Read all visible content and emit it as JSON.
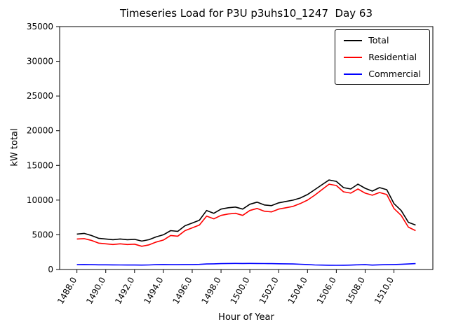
{
  "chart_data": {
    "type": "line",
    "title": "Timeseries Load for P3U p3uhs10_1247  Day 63",
    "xlabel": "Hour of Year",
    "ylabel": "kW total",
    "xlim": [
      1486.8,
      1512.7
    ],
    "ylim": [
      0,
      35000
    ],
    "grid": false,
    "legend_position": "upper right",
    "x_ticks": [
      {
        "value": 1488,
        "label": "1488.0"
      },
      {
        "value": 1490,
        "label": "1490.0"
      },
      {
        "value": 1492,
        "label": "1492.0"
      },
      {
        "value": 1494,
        "label": "1494.0"
      },
      {
        "value": 1496,
        "label": "1496.0"
      },
      {
        "value": 1498,
        "label": "1498.0"
      },
      {
        "value": 1500,
        "label": "1500.0"
      },
      {
        "value": 1502,
        "label": "1502.0"
      },
      {
        "value": 1504,
        "label": "1504.0"
      },
      {
        "value": 1506,
        "label": "1506.0"
      },
      {
        "value": 1508,
        "label": "1508.0"
      },
      {
        "value": 1510,
        "label": "1510.0"
      }
    ],
    "y_ticks": [
      {
        "value": 0,
        "label": "0"
      },
      {
        "value": 5000,
        "label": "5000"
      },
      {
        "value": 10000,
        "label": "10000"
      },
      {
        "value": 15000,
        "label": "15000"
      },
      {
        "value": 20000,
        "label": "20000"
      },
      {
        "value": 25000,
        "label": "25000"
      },
      {
        "value": 30000,
        "label": "30000"
      },
      {
        "value": 35000,
        "label": "35000"
      }
    ],
    "x": [
      1488.0,
      1488.5,
      1489.0,
      1489.5,
      1490.0,
      1490.5,
      1491.0,
      1491.5,
      1492.0,
      1492.5,
      1493.0,
      1493.5,
      1494.0,
      1494.5,
      1495.0,
      1495.5,
      1496.0,
      1496.5,
      1497.0,
      1497.5,
      1498.0,
      1498.5,
      1499.0,
      1499.5,
      1500.0,
      1500.5,
      1501.0,
      1501.5,
      1502.0,
      1502.5,
      1503.0,
      1503.5,
      1504.0,
      1504.5,
      1505.0,
      1505.5,
      1506.0,
      1506.5,
      1507.0,
      1507.5,
      1508.0,
      1508.5,
      1509.0,
      1509.5,
      1510.0,
      1510.5,
      1511.0,
      1511.5
    ],
    "series": [
      {
        "name": "Total",
        "color": "#000000",
        "values": [
          5100,
          5200,
          4900,
          4500,
          4400,
          4300,
          4400,
          4300,
          4350,
          4100,
          4300,
          4700,
          5000,
          5600,
          5500,
          6300,
          6700,
          7100,
          8500,
          8100,
          8700,
          8900,
          9000,
          8700,
          9400,
          9700,
          9300,
          9200,
          9600,
          9800,
          10000,
          10300,
          10800,
          11500,
          12200,
          12900,
          12700,
          11800,
          11600,
          12300,
          11700,
          11300,
          11800,
          11500,
          9500,
          8500,
          6800,
          6400
        ]
      },
      {
        "name": "Residential",
        "color": "#ff0000",
        "values": [
          4400,
          4450,
          4200,
          3800,
          3700,
          3600,
          3700,
          3600,
          3650,
          3350,
          3550,
          3950,
          4250,
          4900,
          4800,
          5600,
          6000,
          6400,
          7700,
          7300,
          7800,
          8000,
          8100,
          7800,
          8500,
          8800,
          8400,
          8300,
          8700,
          8900,
          9100,
          9500,
          10000,
          10700,
          11500,
          12300,
          12100,
          11200,
          11000,
          11600,
          11000,
          10700,
          11100,
          10800,
          8800,
          7800,
          6100,
          5600
        ]
      },
      {
        "name": "Commercial",
        "color": "#0000ff",
        "values": [
          700,
          720,
          700,
          680,
          680,
          670,
          660,
          650,
          650,
          640,
          660,
          700,
          720,
          700,
          700,
          720,
          720,
          740,
          800,
          820,
          850,
          870,
          880,
          870,
          880,
          870,
          860,
          850,
          830,
          820,
          800,
          760,
          720,
          660,
          640,
          620,
          610,
          620,
          640,
          680,
          700,
          640,
          680,
          700,
          720,
          750,
          800,
          850
        ]
      }
    ]
  }
}
